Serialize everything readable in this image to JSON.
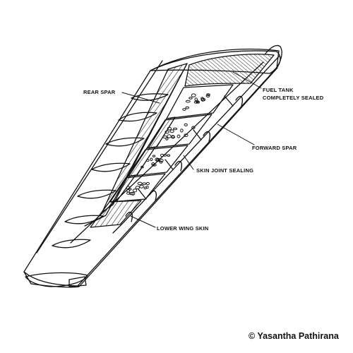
{
  "labels": {
    "rear_spar": "REAR SPAR",
    "fuel_tank_line1": "FUEL TANK",
    "fuel_tank_line2": "COMPLETELY SEALED",
    "forward_spar": "FORWARD SPAR",
    "skin_joint_sealing": "SKIN JOINT SEALING",
    "lower_wing_skin": "LOWER WING SKIN"
  },
  "credit": "© Yasantha Pathirana",
  "colors": {
    "line": "#111111",
    "paper": "#ffffff"
  }
}
